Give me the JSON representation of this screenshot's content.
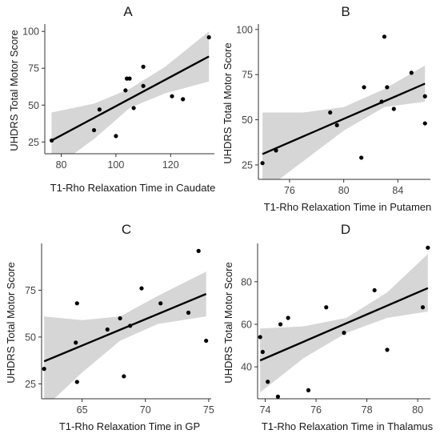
{
  "chart_data": [
    {
      "type": "scatter",
      "panel_label": "A",
      "xlabel": "T1-Rho Relaxation Time in Caudate",
      "ylabel": "UHDRS Total Motor Score",
      "xlim": [
        74,
        136
      ],
      "ylim": [
        17,
        105
      ],
      "x_ticks": [
        80,
        100,
        120
      ],
      "y_ticks": [
        25,
        50,
        75,
        100
      ],
      "grid": false,
      "points": [
        {
          "x": 76.5,
          "y": 26
        },
        {
          "x": 92,
          "y": 33
        },
        {
          "x": 94,
          "y": 47
        },
        {
          "x": 100,
          "y": 29
        },
        {
          "x": 103.5,
          "y": 60
        },
        {
          "x": 104,
          "y": 68
        },
        {
          "x": 105,
          "y": 68
        },
        {
          "x": 106.5,
          "y": 48
        },
        {
          "x": 110,
          "y": 76
        },
        {
          "x": 110,
          "y": 63
        },
        {
          "x": 120.5,
          "y": 56
        },
        {
          "x": 124.5,
          "y": 54
        },
        {
          "x": 134,
          "y": 96
        }
      ],
      "fit_line": [
        {
          "x": 76.5,
          "y": 26
        },
        {
          "x": 134,
          "y": 83
        }
      ],
      "confidence_band": {
        "x": [
          76.5,
          92,
          105,
          118,
          134
        ],
        "lower": [
          6,
          27,
          48,
          58,
          66
        ],
        "upper": [
          45,
          51,
          61,
          76,
          100
        ]
      }
    },
    {
      "type": "scatter",
      "panel_label": "B",
      "xlabel": "T1-Rho Relaxation Time in Putamen",
      "ylabel": "UHDRS Total Motor Score",
      "xlim": [
        73.7,
        86.4
      ],
      "ylim": [
        17,
        103
      ],
      "x_ticks": [
        76,
        80,
        84
      ],
      "y_ticks": [
        25,
        50,
        75,
        100
      ],
      "grid": false,
      "points": [
        {
          "x": 74,
          "y": 26
        },
        {
          "x": 75,
          "y": 33
        },
        {
          "x": 79,
          "y": 54
        },
        {
          "x": 79.5,
          "y": 47
        },
        {
          "x": 81.3,
          "y": 29
        },
        {
          "x": 81.5,
          "y": 68
        },
        {
          "x": 82.8,
          "y": 60
        },
        {
          "x": 83,
          "y": 96
        },
        {
          "x": 83.2,
          "y": 68
        },
        {
          "x": 83.7,
          "y": 56
        },
        {
          "x": 85,
          "y": 76
        },
        {
          "x": 86,
          "y": 63
        },
        {
          "x": 86,
          "y": 48
        }
      ],
      "fit_line": [
        {
          "x": 74,
          "y": 31
        },
        {
          "x": 86,
          "y": 70
        }
      ],
      "confidence_band": {
        "x": [
          74,
          77,
          80,
          83,
          86
        ],
        "lower": [
          10,
          27,
          44,
          57,
          60
        ],
        "upper": [
          54,
          54,
          57,
          67,
          80
        ]
      }
    },
    {
      "type": "scatter",
      "panel_label": "C",
      "xlabel": "T1-Rho Relaxation Time in GP",
      "ylabel": "UHDRS Total Motor Score",
      "xlim": [
        61.8,
        75.2
      ],
      "ylim": [
        17,
        100
      ],
      "x_ticks": [
        65,
        70,
        75
      ],
      "y_ticks": [
        25,
        50,
        75
      ],
      "grid": false,
      "points": [
        {
          "x": 62,
          "y": 33
        },
        {
          "x": 64.5,
          "y": 47
        },
        {
          "x": 64.6,
          "y": 68
        },
        {
          "x": 64.6,
          "y": 26
        },
        {
          "x": 67,
          "y": 54
        },
        {
          "x": 68,
          "y": 60
        },
        {
          "x": 68.3,
          "y": 29
        },
        {
          "x": 68.8,
          "y": 56
        },
        {
          "x": 69.7,
          "y": 76
        },
        {
          "x": 71.2,
          "y": 68
        },
        {
          "x": 73.4,
          "y": 63
        },
        {
          "x": 74.2,
          "y": 96
        },
        {
          "x": 74.8,
          "y": 48
        }
      ],
      "fit_line": [
        {
          "x": 62,
          "y": 37
        },
        {
          "x": 74.8,
          "y": 73
        }
      ],
      "confidence_band": {
        "x": [
          62,
          65,
          68,
          71,
          74.8
        ],
        "lower": [
          12,
          31,
          48,
          57,
          61
        ],
        "upper": [
          61,
          59,
          61,
          72,
          85
        ]
      }
    },
    {
      "type": "scatter",
      "panel_label": "D",
      "xlabel": "T1-Rho Relaxation Time in Thalamus",
      "ylabel": "UHDRS Total Motor Score",
      "xlim": [
        73.7,
        80.5
      ],
      "ylim": [
        25,
        98
      ],
      "x_ticks": [
        74,
        76,
        78,
        80
      ],
      "y_ticks": [
        40,
        60,
        80
      ],
      "grid": false,
      "points": [
        {
          "x": 73.8,
          "y": 54
        },
        {
          "x": 73.9,
          "y": 47
        },
        {
          "x": 74.1,
          "y": 33
        },
        {
          "x": 74.5,
          "y": 26
        },
        {
          "x": 74.6,
          "y": 60
        },
        {
          "x": 74.9,
          "y": 63
        },
        {
          "x": 75.7,
          "y": 29
        },
        {
          "x": 76.4,
          "y": 68
        },
        {
          "x": 77.1,
          "y": 56
        },
        {
          "x": 78.3,
          "y": 76
        },
        {
          "x": 78.8,
          "y": 48
        },
        {
          "x": 80.2,
          "y": 68
        },
        {
          "x": 80.4,
          "y": 96
        }
      ],
      "fit_line": [
        {
          "x": 73.8,
          "y": 43
        },
        {
          "x": 80.4,
          "y": 77
        }
      ],
      "confidence_band": {
        "x": [
          73.8,
          75.5,
          77.2,
          78.8,
          80.4
        ],
        "lower": [
          28,
          44,
          56,
          63,
          66
        ],
        "upper": [
          58,
          59,
          63,
          75,
          93
        ]
      }
    }
  ]
}
